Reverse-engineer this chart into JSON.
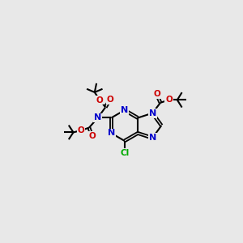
{
  "background_color": "#e8e8e8",
  "bond_color": "#000000",
  "N_color": "#0000cc",
  "O_color": "#cc0000",
  "Cl_color": "#00aa00",
  "figsize": [
    3.0,
    3.0
  ],
  "dpi": 100,
  "xlim": [
    0,
    10
  ],
  "ylim": [
    0,
    10
  ]
}
